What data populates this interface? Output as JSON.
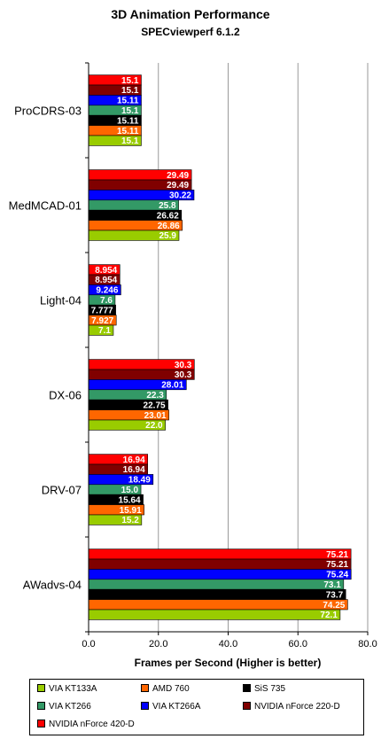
{
  "chart_data": {
    "type": "bar",
    "orientation": "horizontal",
    "title": "3D Animation Performance",
    "subtitle": "SPECviewperf 6.1.2",
    "xlabel": "Frames per Second (Higher is better)",
    "ylabel": "",
    "xlim": [
      0,
      80
    ],
    "xticks": [
      "0.0",
      "20.0",
      "40.0",
      "60.0",
      "80.0"
    ],
    "grid": true,
    "legend_position": "bottom",
    "categories": [
      "ProCDRS-03",
      "MedMCAD-01",
      "Light-04",
      "DX-06",
      "DRV-07",
      "AWadvs-04"
    ],
    "series": [
      {
        "name": "NVIDIA nForce 420-D",
        "color": "#ff0000",
        "values": [
          15.1,
          29.49,
          8.954,
          30.3,
          16.94,
          75.21
        ],
        "labels": [
          "15.1",
          "29.49",
          "8.954",
          "30.3",
          "16.94",
          "75.21"
        ]
      },
      {
        "name": "NVIDIA nForce 220-D",
        "color": "#800000",
        "values": [
          15.1,
          29.49,
          8.954,
          30.3,
          16.94,
          75.21
        ],
        "labels": [
          "15.1",
          "29.49",
          "8.954",
          "30.3",
          "16.94",
          "75.21"
        ]
      },
      {
        "name": "VIA KT266A",
        "color": "#0000ff",
        "values": [
          15.11,
          30.22,
          9.246,
          28.01,
          18.49,
          75.24
        ],
        "labels": [
          "15.11",
          "30.22",
          "9.246",
          "28.01",
          "18.49",
          "75.24"
        ]
      },
      {
        "name": "VIA KT266",
        "color": "#339966",
        "values": [
          15.1,
          25.8,
          7.6,
          22.3,
          15.0,
          73.1
        ],
        "labels": [
          "15.1",
          "25.8",
          "7.6",
          "22.3",
          "15.0",
          "73.1"
        ]
      },
      {
        "name": "SiS 735",
        "color": "#000000",
        "values": [
          15.11,
          26.62,
          7.777,
          22.75,
          15.64,
          73.7
        ],
        "labels": [
          "15.11",
          "26.62",
          "7.777",
          "22.75",
          "15.64",
          "73.7"
        ]
      },
      {
        "name": "AMD 760",
        "color": "#ff6600",
        "values": [
          15.11,
          26.86,
          7.927,
          23.01,
          15.91,
          74.25
        ],
        "labels": [
          "15.11",
          "26.86",
          "7.927",
          "23.01",
          "15.91",
          "74.25"
        ]
      },
      {
        "name": "VIA KT133A",
        "color": "#99cc00",
        "values": [
          15.1,
          25.9,
          7.1,
          22.0,
          15.2,
          72.1
        ],
        "labels": [
          "15.1",
          "25.9",
          "7.1",
          "22.0",
          "15.2",
          "72.1"
        ]
      }
    ],
    "legend_order": [
      "VIA KT133A",
      "AMD 760",
      "SiS 735",
      "VIA KT266",
      "VIA KT266A",
      "NVIDIA nForce 220-D",
      "NVIDIA nForce 420-D"
    ]
  }
}
